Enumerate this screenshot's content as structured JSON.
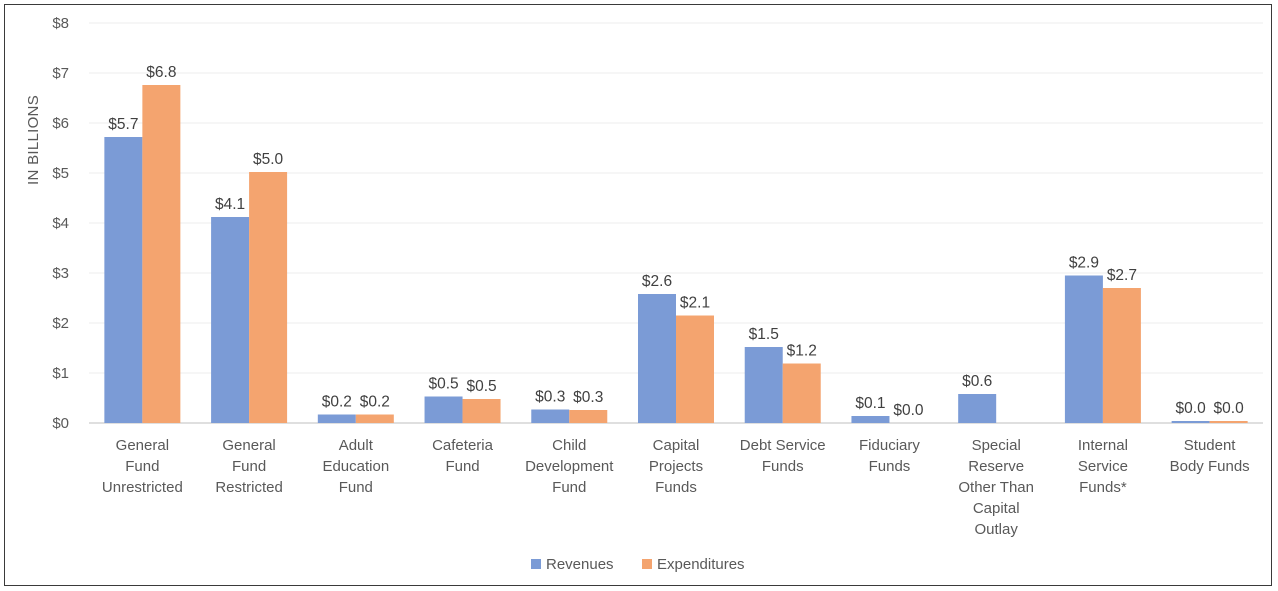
{
  "chart_data": {
    "type": "bar",
    "ylabel": "IN BILLIONS",
    "ylim": [
      0,
      8
    ],
    "yticks": [
      "$0",
      "$1",
      "$2",
      "$3",
      "$4",
      "$5",
      "$6",
      "$7",
      "$8"
    ],
    "grid": true,
    "legend_position": "bottom",
    "categories": [
      [
        "General",
        "Fund",
        "Unrestricted"
      ],
      [
        "General",
        "Fund",
        "Restricted"
      ],
      [
        "Adult",
        "Education",
        "Fund"
      ],
      [
        "Cafeteria",
        "Fund"
      ],
      [
        "Child",
        "Development",
        "Fund"
      ],
      [
        "Capital",
        "Projects",
        "Funds"
      ],
      [
        "Debt Service",
        "Funds"
      ],
      [
        "Fiduciary",
        "Funds"
      ],
      [
        "Special",
        "Reserve",
        "Other Than",
        "Capital",
        "Outlay"
      ],
      [
        "Internal",
        "Service",
        "Funds*"
      ],
      [
        "Student",
        "Body Funds"
      ]
    ],
    "series": [
      {
        "name": "Revenues",
        "color": "#7b9bd6",
        "values": [
          5.72,
          4.12,
          0.17,
          0.53,
          0.27,
          2.58,
          1.52,
          0.14,
          0.58,
          2.95,
          0.04
        ],
        "labels": [
          "$5.7",
          "$4.1",
          "$0.2",
          "$0.5",
          "$0.3",
          "$2.6",
          "$1.5",
          "$0.1",
          "$0.6",
          "$2.9",
          "$0.0"
        ]
      },
      {
        "name": "Expenditures",
        "color": "#f4a46f",
        "values": [
          6.76,
          5.02,
          0.17,
          0.48,
          0.26,
          2.15,
          1.19,
          0.0,
          null,
          2.7,
          0.04
        ],
        "labels": [
          "$6.8",
          "$5.0",
          "$0.2",
          "$0.5",
          "$0.3",
          "$2.1",
          "$1.2",
          "$0.0",
          null,
          "$2.7",
          "$0.0"
        ]
      }
    ]
  }
}
